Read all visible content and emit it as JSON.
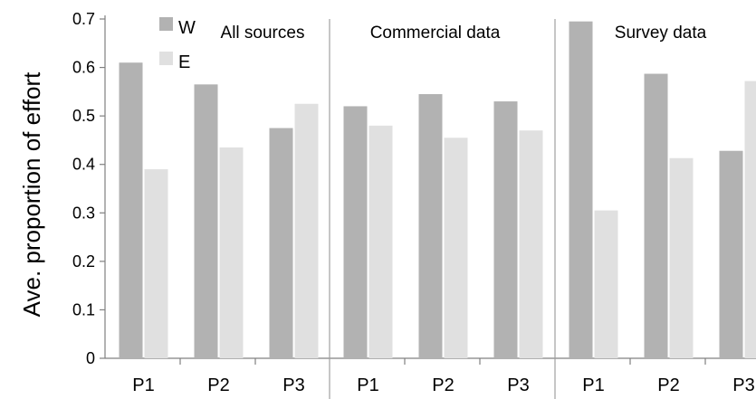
{
  "chart_data": {
    "type": "bar",
    "ylabel": "Ave. proportion of effort",
    "ylim": [
      0,
      0.7
    ],
    "yticks": [
      "0",
      "0.1",
      "0.2",
      "0.3",
      "0.4",
      "0.5",
      "0.6",
      "0.7"
    ],
    "categories": [
      "P1",
      "P2",
      "P3"
    ],
    "legend": {
      "placement": "top-left",
      "entries": [
        {
          "name": "W",
          "color": "#b2b2b2"
        },
        {
          "name": "E",
          "color": "#e0e0e0"
        }
      ]
    },
    "grid": false,
    "panels": [
      {
        "title": "All sources",
        "series": [
          {
            "name": "W",
            "values": [
              0.61,
              0.565,
              0.475
            ]
          },
          {
            "name": "E",
            "values": [
              0.39,
              0.435,
              0.525
            ]
          }
        ]
      },
      {
        "title": "Commercial data",
        "series": [
          {
            "name": "W",
            "values": [
              0.52,
              0.545,
              0.53
            ]
          },
          {
            "name": "E",
            "values": [
              0.48,
              0.455,
              0.47
            ]
          }
        ]
      },
      {
        "title": "Survey data",
        "series": [
          {
            "name": "W",
            "values": [
              0.695,
              0.587,
              0.428
            ]
          },
          {
            "name": "E",
            "values": [
              0.305,
              0.413,
              0.572
            ]
          }
        ]
      }
    ]
  }
}
